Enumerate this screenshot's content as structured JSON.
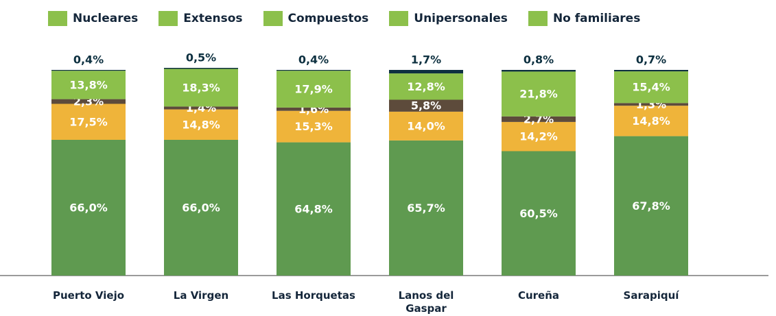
{
  "chart_data": {
    "type": "stacked_bar",
    "categories": [
      "Puerto Viejo",
      "La Virgen",
      "Las Horquetas",
      "Lanos del Gaspar",
      "Cureña",
      "Sarapiquí"
    ],
    "legend_swatch_color": "#8cc04b",
    "series": [
      {
        "name": "Nucleares",
        "color": "#5f9a50",
        "values": [
          66.0,
          66.0,
          64.8,
          65.7,
          60.5,
          67.8
        ],
        "value_labels": [
          "66,0%",
          "66,0%",
          "64,8%",
          "65,7%",
          "60,5%",
          "67,8%"
        ]
      },
      {
        "name": "Extensos",
        "color": "#efb43a",
        "values": [
          17.5,
          14.8,
          15.3,
          14.0,
          14.2,
          14.8
        ],
        "value_labels": [
          "17,5%",
          "14,8%",
          "15,3%",
          "14,0%",
          "14,2%",
          "14,8%"
        ]
      },
      {
        "name": "Compuestos",
        "color": "#5d4b3b",
        "values": [
          2.3,
          1.4,
          1.6,
          5.8,
          2.7,
          1.3
        ],
        "value_labels": [
          "2,3%",
          "1,4%",
          "1,6%",
          "5,8%",
          "2,7%",
          "1,3%"
        ]
      },
      {
        "name": "Unipersonales",
        "color": "#8cc04b",
        "values": [
          13.8,
          18.3,
          17.9,
          12.8,
          21.8,
          15.4
        ],
        "value_labels": [
          "13,8%",
          "18,3%",
          "17,9%",
          "12,8%",
          "21,8%",
          "15,4%"
        ]
      },
      {
        "name": "No familiares",
        "color": "#0d3040",
        "values": [
          0.4,
          0.5,
          0.4,
          1.7,
          0.8,
          0.7
        ],
        "value_labels": [
          "0,4%",
          "0,5%",
          "0,4%",
          "1,7%",
          "0,8%",
          "0,7%"
        ]
      }
    ]
  }
}
